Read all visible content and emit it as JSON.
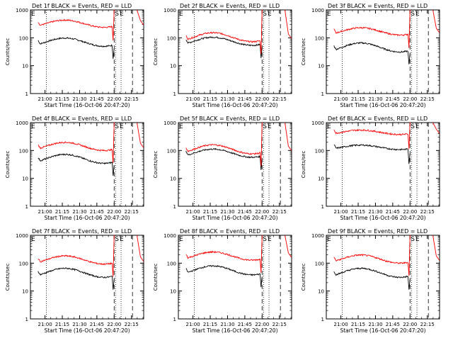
{
  "figure": {
    "colors": {
      "events": "#000000",
      "lld": "#ff0000",
      "axes": "#000000",
      "background": "#ffffff"
    }
  },
  "chart_data": [
    {
      "type": "line",
      "title": "Det 1f BLACK = Events, RED = LLD",
      "xlabel": "Start Time (16-Oct-06 20:47:20)",
      "ylabel": "Counts/sec",
      "yscale": "log",
      "ylim": [
        1,
        1000
      ],
      "xtick_labels": [
        "21:00",
        "21:15",
        "21:30",
        "21:45",
        "22:00",
        "22:15"
      ],
      "xtick_values": [
        21.0,
        21.25,
        21.5,
        21.75,
        22.0,
        22.25
      ],
      "xlim": [
        20.789,
        22.427
      ],
      "ytick_labels": [
        "1",
        "10",
        "100",
        "1000"
      ],
      "ytick_values": [
        1,
        10,
        100,
        1000
      ],
      "markers": [
        "S",
        "E"
      ],
      "marker_times": [
        22.02,
        22.1
      ],
      "series": [
        {
          "name": "BLACK = Events",
          "color": "#000000",
          "base": 70,
          "amp": 1.4
        },
        {
          "name": "RED = LLD",
          "color": "#ff0000",
          "base": 320,
          "amp": 1.35
        }
      ]
    },
    {
      "type": "line",
      "title": "Det 2f BLACK = Events, RED = LLD",
      "xlabel": "Start Time (16-Oct-06 20:47:20)",
      "ylabel": "Counts/sec",
      "yscale": "log",
      "ylim": [
        1,
        1000
      ],
      "xtick_labels": [
        "21:00",
        "21:15",
        "21:30",
        "21:45",
        "22:00",
        "22:15"
      ],
      "xtick_values": [
        21.0,
        21.25,
        21.5,
        21.75,
        22.0,
        22.25
      ],
      "xlim": [
        20.789,
        22.427
      ],
      "ytick_labels": [
        "1",
        "10",
        "100",
        "1000"
      ],
      "ytick_values": [
        1,
        10,
        100,
        1000
      ],
      "markers": [
        "S",
        "E"
      ],
      "marker_times": [
        22.02,
        22.1
      ],
      "series": [
        {
          "name": "BLACK = Events",
          "color": "#000000",
          "base": 75,
          "amp": 1.4
        },
        {
          "name": "RED = LLD",
          "color": "#ff0000",
          "base": 105,
          "amp": 1.45
        }
      ]
    },
    {
      "type": "line",
      "title": "Det 3f BLACK = Events, RED = LLD",
      "xlabel": "Start Time (16-Oct-06 20:47:20)",
      "ylabel": "Counts/sec",
      "yscale": "log",
      "ylim": [
        1,
        1000
      ],
      "xtick_labels": [
        "21:00",
        "21:15",
        "21:30",
        "21:45",
        "22:00",
        "22:15"
      ],
      "xtick_values": [
        21.0,
        21.25,
        21.5,
        21.75,
        22.0,
        22.25
      ],
      "xlim": [
        20.789,
        22.427
      ],
      "ytick_labels": [
        "1",
        "10",
        "100",
        "1000"
      ],
      "ytick_values": [
        1,
        10,
        100,
        1000
      ],
      "markers": [
        "S",
        "E"
      ],
      "marker_times": [
        22.02,
        22.1
      ],
      "series": [
        {
          "name": "BLACK = Events",
          "color": "#000000",
          "base": 45,
          "amp": 1.45
        },
        {
          "name": "RED = LLD",
          "color": "#ff0000",
          "base": 170,
          "amp": 1.35
        }
      ]
    },
    {
      "type": "line",
      "title": "Det 4f BLACK = Events, RED = LLD",
      "xlabel": "Start Time (16-Oct-06 20:47:20)",
      "ylabel": "Counts/sec",
      "yscale": "log",
      "ylim": [
        1,
        1000
      ],
      "xtick_labels": [
        "21:00",
        "21:15",
        "21:30",
        "21:45",
        "22:00",
        "22:15"
      ],
      "xtick_values": [
        21.0,
        21.25,
        21.5,
        21.75,
        22.0,
        22.25
      ],
      "xlim": [
        20.789,
        22.427
      ],
      "ytick_labels": [
        "1",
        "10",
        "100",
        "1000"
      ],
      "ytick_values": [
        1,
        10,
        100,
        1000
      ],
      "markers": [
        "S",
        "E"
      ],
      "marker_times": [
        22.02,
        22.1
      ],
      "series": [
        {
          "name": "BLACK = Events",
          "color": "#000000",
          "base": 50,
          "amp": 1.45
        },
        {
          "name": "RED = LLD",
          "color": "#ff0000",
          "base": 140,
          "amp": 1.4
        }
      ]
    },
    {
      "type": "line",
      "title": "Det 5f BLACK = Events, RED = LLD",
      "xlabel": "Start Time (16-Oct-06 20:47:20)",
      "ylabel": "Counts/sec",
      "yscale": "log",
      "ylim": [
        1,
        1000
      ],
      "xtick_labels": [
        "21:00",
        "21:15",
        "21:30",
        "21:45",
        "22:00",
        "22:15"
      ],
      "xtick_values": [
        21.0,
        21.25,
        21.5,
        21.75,
        22.0,
        22.25
      ],
      "xlim": [
        20.789,
        22.427
      ],
      "ytick_labels": [
        "1",
        "10",
        "100",
        "1000"
      ],
      "ytick_values": [
        1,
        10,
        100,
        1000
      ],
      "markers": [
        "S",
        "E"
      ],
      "marker_times": [
        22.02,
        22.1
      ],
      "series": [
        {
          "name": "BLACK = Events",
          "color": "#000000",
          "base": 80,
          "amp": 1.4
        },
        {
          "name": "RED = LLD",
          "color": "#ff0000",
          "base": 110,
          "amp": 1.45
        }
      ]
    },
    {
      "type": "line",
      "title": "Det 6f BLACK = Events, RED = LLD",
      "xlabel": "Start Time (16-Oct-06 20:47:20)",
      "ylabel": "Counts/sec",
      "yscale": "log",
      "ylim": [
        1,
        1000
      ],
      "xtick_labels": [
        "21:00",
        "21:15",
        "21:30",
        "21:45",
        "22:00",
        "22:15"
      ],
      "xtick_values": [
        21.0,
        21.25,
        21.5,
        21.75,
        22.0,
        22.25
      ],
      "xlim": [
        20.789,
        22.427
      ],
      "ytick_labels": [
        "1",
        "10",
        "100",
        "1000"
      ],
      "ytick_values": [
        1,
        10,
        100,
        1000
      ],
      "markers": [
        "S",
        "E"
      ],
      "marker_times": [
        22.02,
        22.1
      ],
      "series": [
        {
          "name": "BLACK = Events",
          "color": "#000000",
          "base": 130,
          "amp": 1.2
        },
        {
          "name": "RED = LLD",
          "color": "#ff0000",
          "base": 450,
          "amp": 1.2
        }
      ]
    },
    {
      "type": "line",
      "title": "Det 7f BLACK = Events, RED = LLD",
      "xlabel": "Start Time (16-Oct-06 20:47:20)",
      "ylabel": "Counts/sec",
      "yscale": "log",
      "ylim": [
        1,
        1000
      ],
      "xtick_labels": [
        "21:00",
        "21:15",
        "21:30",
        "21:45",
        "22:00",
        "22:15"
      ],
      "xtick_values": [
        21.0,
        21.25,
        21.5,
        21.75,
        22.0,
        22.25
      ],
      "xlim": [
        20.789,
        22.427
      ],
      "ytick_labels": [
        "1",
        "10",
        "100",
        "1000"
      ],
      "ytick_values": [
        1,
        10,
        100,
        1000
      ],
      "markers": [
        "S",
        "E"
      ],
      "marker_times": [
        22.02,
        22.1
      ],
      "series": [
        {
          "name": "BLACK = Events",
          "color": "#000000",
          "base": 45,
          "amp": 1.45
        },
        {
          "name": "RED = LLD",
          "color": "#ff0000",
          "base": 130,
          "amp": 1.4
        }
      ]
    },
    {
      "type": "line",
      "title": "Det 8f BLACK = Events, RED = LLD",
      "xlabel": "Start Time (16-Oct-06 20:47:20)",
      "ylabel": "Counts/sec",
      "yscale": "log",
      "ylim": [
        1,
        1000
      ],
      "xtick_labels": [
        "21:00",
        "21:15",
        "21:30",
        "21:45",
        "22:00",
        "22:15"
      ],
      "xtick_values": [
        21.0,
        21.25,
        21.5,
        21.75,
        22.0,
        22.25
      ],
      "xlim": [
        20.789,
        22.427
      ],
      "ytick_labels": [
        "1",
        "10",
        "100",
        "1000"
      ],
      "ytick_values": [
        1,
        10,
        100,
        1000
      ],
      "markers": [
        "S",
        "E"
      ],
      "marker_times": [
        22.02,
        22.1
      ],
      "series": [
        {
          "name": "BLACK = Events",
          "color": "#000000",
          "base": 55,
          "amp": 1.45
        },
        {
          "name": "RED = LLD",
          "color": "#ff0000",
          "base": 180,
          "amp": 1.4
        }
      ]
    },
    {
      "type": "line",
      "title": "Det 9f BLACK = Events, RED = LLD",
      "xlabel": "Start Time (16-Oct-06 20:47:20)",
      "ylabel": "Counts/sec",
      "yscale": "log",
      "ylim": [
        1,
        1000
      ],
      "xtick_labels": [
        "21:00",
        "21:15",
        "21:30",
        "21:45",
        "22:00",
        "22:15"
      ],
      "xtick_values": [
        21.0,
        21.25,
        21.5,
        21.75,
        22.0,
        22.25
      ],
      "xlim": [
        20.789,
        22.427
      ],
      "ytick_labels": [
        "1",
        "10",
        "100",
        "1000"
      ],
      "ytick_values": [
        1,
        10,
        100,
        1000
      ],
      "markers": [
        "S",
        "E"
      ],
      "marker_times": [
        22.02,
        22.1
      ],
      "series": [
        {
          "name": "BLACK = Events",
          "color": "#000000",
          "base": 45,
          "amp": 1.45
        },
        {
          "name": "RED = LLD",
          "color": "#ff0000",
          "base": 140,
          "amp": 1.4
        }
      ]
    }
  ]
}
